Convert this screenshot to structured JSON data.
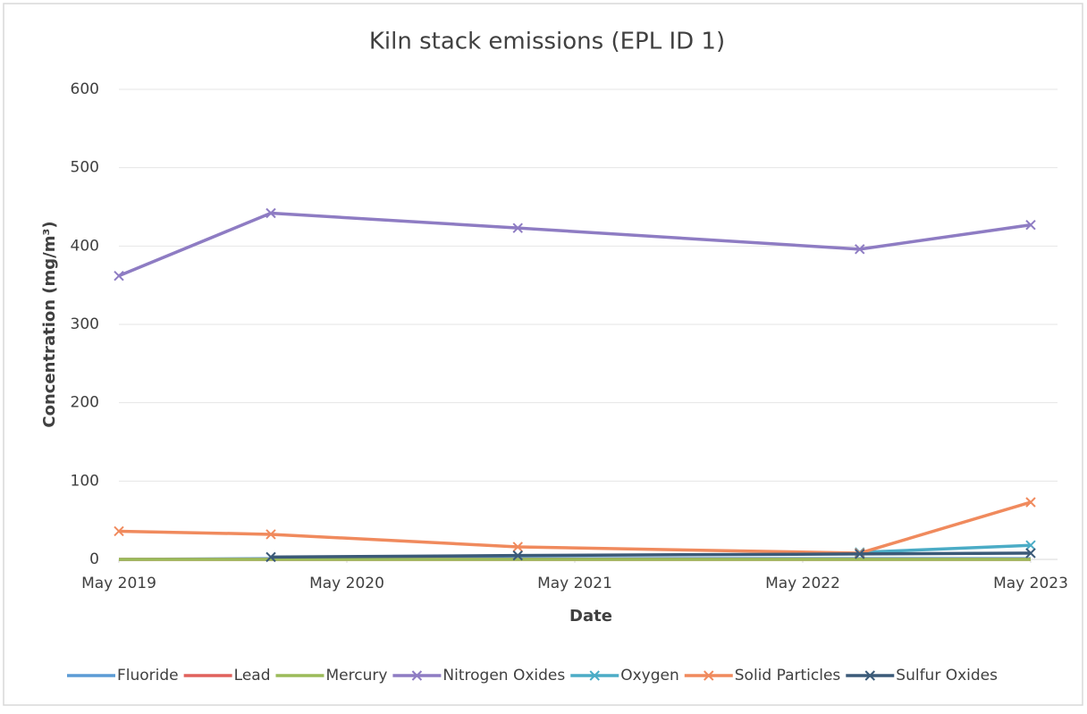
{
  "chart_data": {
    "type": "line",
    "title": "Kiln stack emissions (EPL ID 1)",
    "x_label": "Date",
    "y_label": "Concentration (mg/m³)",
    "x": [
      "2019-05",
      "2020-01",
      "2021-02",
      "2022-08",
      "2023-05"
    ],
    "xlim": [
      "2019-05",
      "2023-05"
    ],
    "xticks": [
      {
        "value": "2019-05",
        "label": "May 2019"
      },
      {
        "value": "2020-05",
        "label": "May 2020"
      },
      {
        "value": "2021-05",
        "label": "May 2021"
      },
      {
        "value": "2022-05",
        "label": "May 2022"
      },
      {
        "value": "2023-05",
        "label": "May 2023"
      }
    ],
    "ylim": [
      0,
      600
    ],
    "yticks": [
      0,
      100,
      200,
      300,
      400,
      500,
      600
    ],
    "grid": true,
    "legend": "bottom",
    "series": [
      {
        "name": "Fluoride",
        "color": "#5b9bd5",
        "markers": false,
        "values": [
          0,
          1,
          1,
          1,
          1
        ]
      },
      {
        "name": "Lead",
        "color": "#e0615c",
        "markers": false,
        "values": [
          0,
          0,
          0,
          0,
          0
        ]
      },
      {
        "name": "Mercury",
        "color": "#9bbb59",
        "markers": false,
        "values": [
          0,
          0,
          0,
          0,
          0
        ]
      },
      {
        "name": "Nitrogen Oxides",
        "color": "#8e7cc3",
        "markers": true,
        "values": [
          362,
          442,
          423,
          396,
          427
        ]
      },
      {
        "name": "Oxygen",
        "color": "#4bacc6",
        "markers": true,
        "values": [
          null,
          null,
          null,
          9,
          18
        ]
      },
      {
        "name": "Solid Particles",
        "color": "#f08a5d",
        "markers": true,
        "values": [
          36,
          32,
          16,
          8,
          73
        ]
      },
      {
        "name": "Sulfur Oxides",
        "color": "#3b5a78",
        "markers": true,
        "values": [
          null,
          3,
          5,
          7,
          8
        ]
      }
    ]
  }
}
